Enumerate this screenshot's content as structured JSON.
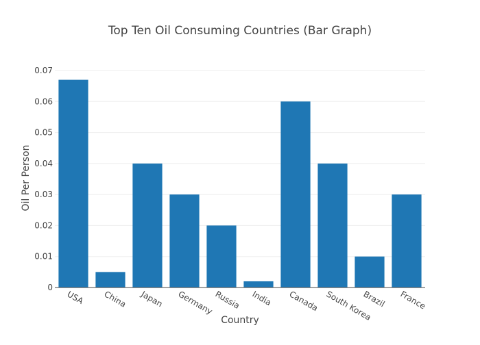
{
  "chart_data": {
    "type": "bar",
    "title": "Top Ten Oil Consuming Countries (Bar Graph)",
    "xlabel": "Country",
    "ylabel": "Oil Per Person",
    "categories": [
      "USA",
      "China",
      "Japan",
      "Germany",
      "Russia",
      "India",
      "Canada",
      "South Korea",
      "Brazil",
      "France"
    ],
    "values": [
      0.067,
      0.005,
      0.04,
      0.03,
      0.02,
      0.002,
      0.06,
      0.04,
      0.01,
      0.03
    ],
    "ylim": [
      0,
      0.07
    ],
    "yticks": [
      0,
      0.01,
      0.02,
      0.03,
      0.04,
      0.05,
      0.06,
      0.07
    ],
    "ytick_labels": [
      "0",
      "0.01",
      "0.02",
      "0.03",
      "0.04",
      "0.05",
      "0.06",
      "0.07"
    ],
    "grid": true,
    "bar_color": "#1f77b4"
  }
}
